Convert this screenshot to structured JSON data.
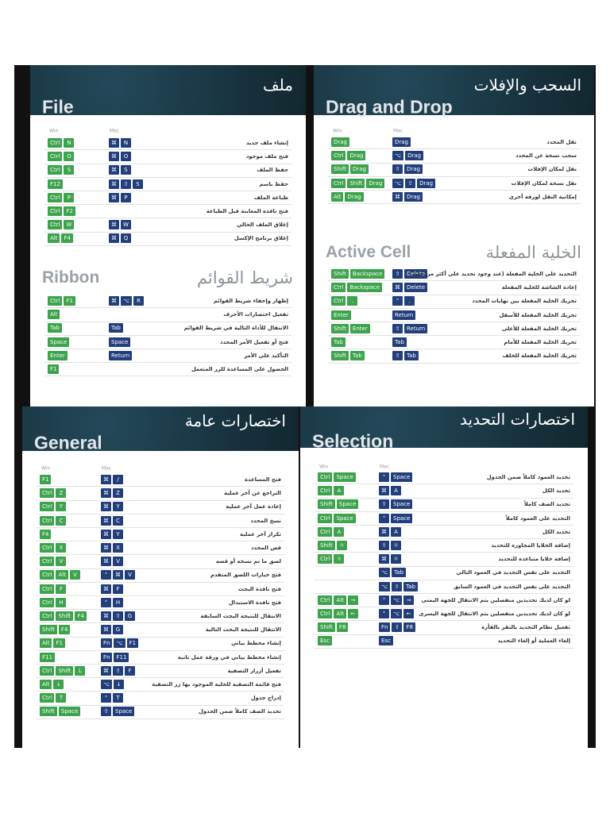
{
  "panels": [
    {
      "sections": [
        {
          "title_ar": "ملف",
          "title_en": "File",
          "label_win": "Win",
          "label_mac": "Mac",
          "rows": [
            {
              "win": [
                "Ctrl",
                "N"
              ],
              "mac": [
                "⌘",
                "N"
              ],
              "desc": "إنشاء ملف جديد"
            },
            {
              "win": [
                "Ctrl",
                "O"
              ],
              "mac": [
                "⌘",
                "O"
              ],
              "desc": "فتح ملف موجود"
            },
            {
              "win": [
                "Ctrl",
                "S"
              ],
              "mac": [
                "⌘",
                "S"
              ],
              "desc": "حفظ الملف"
            },
            {
              "win": [
                "F12"
              ],
              "mac": [
                "⌘",
                "⇧",
                "S"
              ],
              "desc": "حفظ باسم"
            },
            {
              "win": [
                "Ctrl",
                "P"
              ],
              "mac": [
                "⌘",
                "P"
              ],
              "desc": "طباعة الملف"
            },
            {
              "win": [
                "Ctrl",
                "F2"
              ],
              "mac": [],
              "desc": "فتح نافذة المعاينة قبل الطباعة"
            },
            {
              "win": [
                "Ctrl",
                "W"
              ],
              "mac": [
                "⌘",
                "W"
              ],
              "desc": "إغلاق الملف الحالي"
            },
            {
              "win": [
                "Alt",
                "F4"
              ],
              "mac": [
                "⌘",
                "Q"
              ],
              "desc": "إغلاق برنامج الإكسل"
            }
          ]
        },
        {
          "title_ar": "شريط القوائم",
          "title_en": "Ribbon",
          "rows": [
            {
              "win": [
                "Ctrl",
                "F1"
              ],
              "mac": [
                "⌘",
                "⌥",
                "R"
              ],
              "desc": "إظهار وإخفاء شريط القوائم"
            },
            {
              "win": [
                "Alt"
              ],
              "mac": [],
              "desc": "تفعيل اختصارات الأحرف"
            },
            {
              "win": [
                "Tab"
              ],
              "mac": [
                "Tab"
              ],
              "desc": "الانتقال للأداة التالية في شريط القوائم"
            },
            {
              "win": [
                "Space"
              ],
              "mac": [
                "Space"
              ],
              "desc": "فتح أو تفعيل الأمر المحدد"
            },
            {
              "win": [
                "Enter"
              ],
              "mac": [
                "Return"
              ],
              "desc": "التأكيد على الأمر"
            },
            {
              "win": [
                "F1"
              ],
              "mac": [],
              "desc": "الحصول على المساعدة للزر المتعمل"
            }
          ]
        }
      ]
    },
    {
      "sections": [
        {
          "title_ar": "السحب والإفلات",
          "title_en": "Drag and Drop",
          "label_win": "Win",
          "label_mac": "Mac",
          "rows": [
            {
              "win": [
                "Drag"
              ],
              "mac": [
                "Drag"
              ],
              "desc": "نقل المحدد"
            },
            {
              "win": [
                "Ctrl",
                "Drag"
              ],
              "mac": [
                "⌥",
                "Drag"
              ],
              "desc": "سحب نسخة عن المحدد"
            },
            {
              "win": [
                "Shift",
                "Drag"
              ],
              "mac": [
                "⇧",
                "Drag"
              ],
              "desc": "نقل لمكان الإفلات"
            },
            {
              "win": [
                "Ctrl",
                "Shift",
                "Drag"
              ],
              "mac": [
                "⌥",
                "⇧",
                "Drag"
              ],
              "desc": "نقل نسخة لمكان الإفلات"
            },
            {
              "win": [
                "Alt",
                "Drag"
              ],
              "mac": [
                "⌘",
                "Drag"
              ],
              "desc": "إمكانية النقل لورقة أخرى"
            }
          ]
        },
        {
          "title_ar": "الخلية المفعلة",
          "title_en": "Active Cell",
          "rows": [
            {
              "win": [
                "Shift",
                "Backspace"
              ],
              "mac": [
                "⇧",
                "Delete"
              ],
              "desc": "التحديد على الخلية المفعلة (عند وجود تحديد على أكثر من خلية)"
            },
            {
              "win": [
                "Ctrl",
                "Backspace"
              ],
              "mac": [
                "⌘",
                "Delete"
              ],
              "desc": "إعادة الشاشة للخلية المفعلة"
            },
            {
              "win": [
                "Ctrl",
                "."
              ],
              "mac": [
                "⌃",
                "."
              ],
              "desc": "تحريك الخلية المفعلة بين نهايات المحدد"
            },
            {
              "win": [
                "Enter"
              ],
              "mac": [
                "Return"
              ],
              "desc": "تحريك الخلية المفعلة للأسفل"
            },
            {
              "win": [
                "Shift",
                "Enter"
              ],
              "mac": [
                "⇧",
                "Return"
              ],
              "desc": "تحريك الخلية المفعلة للأعلى"
            },
            {
              "win": [
                "Tab"
              ],
              "mac": [
                "Tab"
              ],
              "desc": "تحريك الخلية المفعلة للأمام"
            },
            {
              "win": [
                "Shift",
                "Tab"
              ],
              "mac": [
                "⇧",
                "Tab"
              ],
              "desc": "تحريك الخلية المفعلة للخلف"
            }
          ]
        }
      ]
    },
    {
      "sections": [
        {
          "title_ar": "اختصارات عامة",
          "title_en": "General",
          "label_win": "Win",
          "label_mac": "Mac",
          "rows": [
            {
              "win": [
                "F1"
              ],
              "mac": [
                "⌘",
                "/"
              ],
              "desc": "فتح المساعدة"
            },
            {
              "win": [
                "Ctrl",
                "Z"
              ],
              "mac": [
                "⌘",
                "Z"
              ],
              "desc": "التراجع عن آخر عملية"
            },
            {
              "win": [
                "Ctrl",
                "Y"
              ],
              "mac": [
                "⌘",
                "Y"
              ],
              "desc": "إعادة عمل آخر عملية"
            },
            {
              "win": [
                "Ctrl",
                "C"
              ],
              "mac": [
                "⌘",
                "C"
              ],
              "desc": "نسخ المحدد"
            },
            {
              "win": [
                "F4"
              ],
              "mac": [
                "⌘",
                "Y"
              ],
              "desc": "تكرار آخر عملية"
            },
            {
              "win": [
                "Ctrl",
                "X"
              ],
              "mac": [
                "⌘",
                "X"
              ],
              "desc": "قص المحدد"
            },
            {
              "win": [
                "Ctrl",
                "V"
              ],
              "mac": [
                "⌘",
                "V"
              ],
              "desc": "لصق ما تم نسخه أو قصه"
            },
            {
              "win": [
                "Ctrl",
                "Alt",
                "V"
              ],
              "mac": [
                "⌃",
                "⌘",
                "V"
              ],
              "desc": "فتح خيارات اللصق المتقدم"
            },
            {
              "win": [
                "Ctrl",
                "F"
              ],
              "mac": [
                "⌘",
                "F"
              ],
              "desc": "فتح نافذة البحث"
            },
            {
              "win": [
                "Ctrl",
                "H"
              ],
              "mac": [
                "⌃",
                "H"
              ],
              "desc": "فتح نافذة الاستبدال"
            },
            {
              "win": [
                "Ctrl",
                "Shift",
                "F4"
              ],
              "mac": [
                "⌘",
                "⇧",
                "G"
              ],
              "desc": "الانتقال للنتيجة البحث السابقة"
            },
            {
              "win": [
                "Shift",
                "F4"
              ],
              "mac": [
                "⌘",
                "G"
              ],
              "desc": "الانتقال للنتيجة البحث التالية"
            },
            {
              "win": [
                "Alt",
                "F1"
              ],
              "mac": [
                "Fn",
                "⌥",
                "F1"
              ],
              "desc": "إنشاء مخطط بياني"
            },
            {
              "win": [
                "F11"
              ],
              "mac": [
                "Fn",
                "F11"
              ],
              "desc": "إنشاء مخطط بياني في ورقة عمل ثانية"
            },
            {
              "win": [
                "Ctrl",
                "Shift",
                "L"
              ],
              "mac": [
                "⌘",
                "⇧",
                "F"
              ],
              "desc": "تفعيل أزرار التصفية"
            },
            {
              "win": [
                "Alt",
                "↓"
              ],
              "mac": [
                "⌥",
                "↓"
              ],
              "desc": "فتح قائمة التصفية للخلية الموجود بها زر التصفية"
            },
            {
              "win": [
                "Ctrl",
                "T"
              ],
              "mac": [
                "⌃",
                "T"
              ],
              "desc": "إدراج جدول"
            },
            {
              "win": [
                "Shift",
                "Space"
              ],
              "mac": [
                "⇧",
                "Space"
              ],
              "desc": "تحديد الصف كاملاً ضمن الجدول"
            }
          ]
        }
      ]
    },
    {
      "sections": [
        {
          "title_ar": "اختصارات التحديد",
          "title_en": "Selection",
          "label_win": "Win",
          "label_mac": "Mac",
          "rows": [
            {
              "win": [
                "Ctrl",
                "Space"
              ],
              "mac": [
                "⌃",
                "Space"
              ],
              "desc": "تحديد العمود كاملاً ضمن الجدول"
            },
            {
              "win": [
                "Ctrl",
                "A"
              ],
              "mac": [
                "⌘",
                "A"
              ],
              "desc": "تحديد الكل"
            },
            {
              "win": [
                "Shift",
                "Space"
              ],
              "mac": [
                "⇧",
                "Space"
              ],
              "desc": "تحديد الصف كاملاً"
            },
            {
              "win": [
                "Ctrl",
                "Space"
              ],
              "mac": [
                "⌃",
                "Space"
              ],
              "desc": "التحديد على العمود كاملاً"
            },
            {
              "win": [
                "Ctrl",
                "A"
              ],
              "mac": [
                "⌘",
                "A"
              ],
              "desc": "تحديد الكل"
            },
            {
              "win": [
                "Shift",
                "☼"
              ],
              "mac": [
                "⇧",
                "☼"
              ],
              "desc": "إضافة الخلايا المجاورة للتحديد"
            },
            {
              "win": [
                "Ctrl",
                "☼"
              ],
              "mac": [
                "⌘",
                "☼"
              ],
              "desc": "إضافة خلايا متباعدة للتحديد"
            },
            {
              "win": [],
              "mac": [
                "⌥",
                "Tab"
              ],
              "desc": "التحديد على نفس التحديد في العمود التالي"
            },
            {
              "win": [],
              "mac": [
                "⌥",
                "⇧",
                "Tab"
              ],
              "desc": "التحديد على نفس التحديد في العمود السابق"
            },
            {
              "win": [
                "Ctrl",
                "Alt",
                "→"
              ],
              "mac": [
                "⌃",
                "⌥",
                "→"
              ],
              "desc": "لو كان لديك تحديدين منفصلين يتم الانتقال للجهة اليمنى"
            },
            {
              "win": [
                "Ctrl",
                "Alt",
                "←"
              ],
              "mac": [
                "⌃",
                "⌥",
                "←"
              ],
              "desc": "لو كان لديك تحديدين منفصلين يتم الانتقال للجهة اليسرى"
            },
            {
              "win": [
                "Shift",
                "F8"
              ],
              "mac": [
                "Fn",
                "⇧",
                "F8"
              ],
              "desc": "تفعيل نظام التحديد بالنقر بالفأرة"
            },
            {
              "win": [
                "Esc"
              ],
              "mac": [
                "Esc"
              ],
              "desc": "إلغاء العملية أو إلغاء التحديد"
            }
          ]
        }
      ]
    }
  ]
}
